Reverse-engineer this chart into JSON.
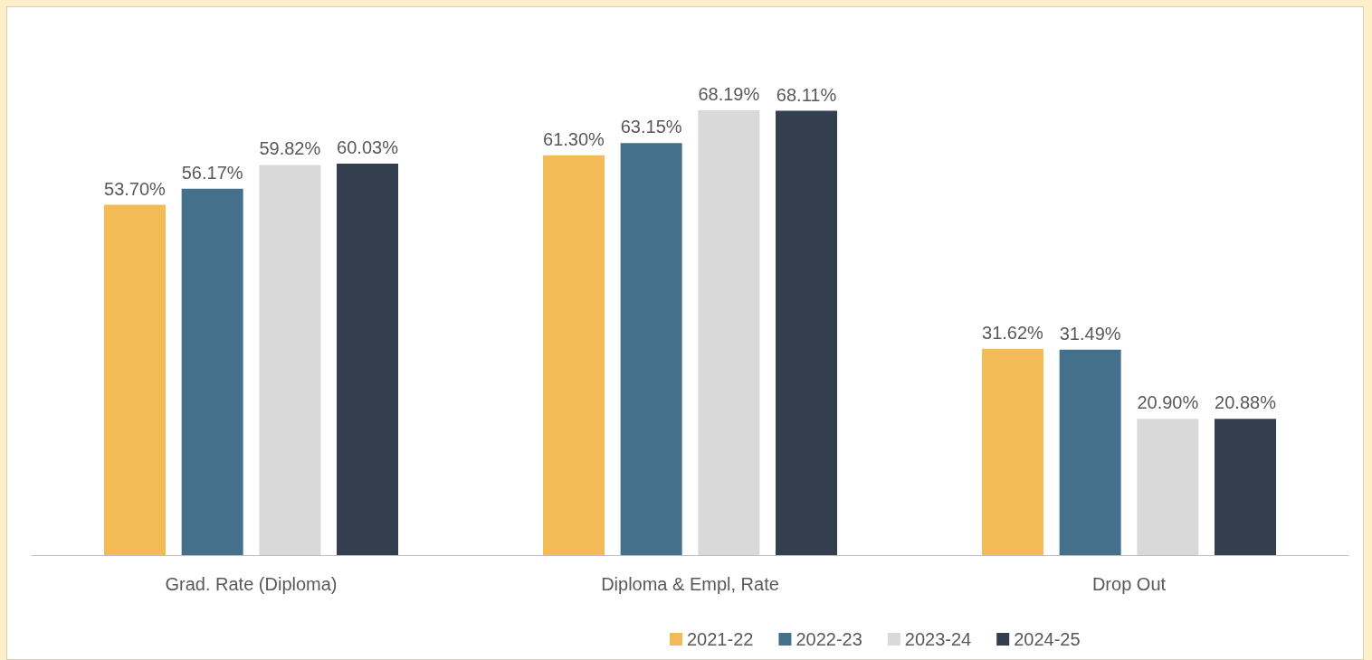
{
  "chart_data": {
    "type": "bar",
    "categories": [
      "Grad. Rate (Diploma)",
      "Diploma & Empl, Rate",
      "Drop Out"
    ],
    "series": [
      {
        "name": "2021-22",
        "color": "#f2bb56",
        "values": [
          53.7,
          61.3,
          31.62
        ],
        "value_labels": [
          "53.70%",
          "61.30%",
          "31.62%"
        ]
      },
      {
        "name": "2022-23",
        "color": "#44708c",
        "values": [
          56.17,
          63.15,
          31.49
        ],
        "value_labels": [
          "56.17%",
          "63.15%",
          "31.49%"
        ]
      },
      {
        "name": "2023-24",
        "color": "#d9d9d9",
        "values": [
          59.82,
          68.19,
          20.9
        ],
        "value_labels": [
          "59.82%",
          "68.19%",
          "20.90%"
        ]
      },
      {
        "name": "2024-25",
        "color": "#333f4f",
        "values": [
          60.03,
          68.11,
          20.88
        ],
        "value_labels": [
          "60.03%",
          "68.11%",
          "20.88%"
        ]
      }
    ],
    "legend": "bottom",
    "grid": false
  }
}
